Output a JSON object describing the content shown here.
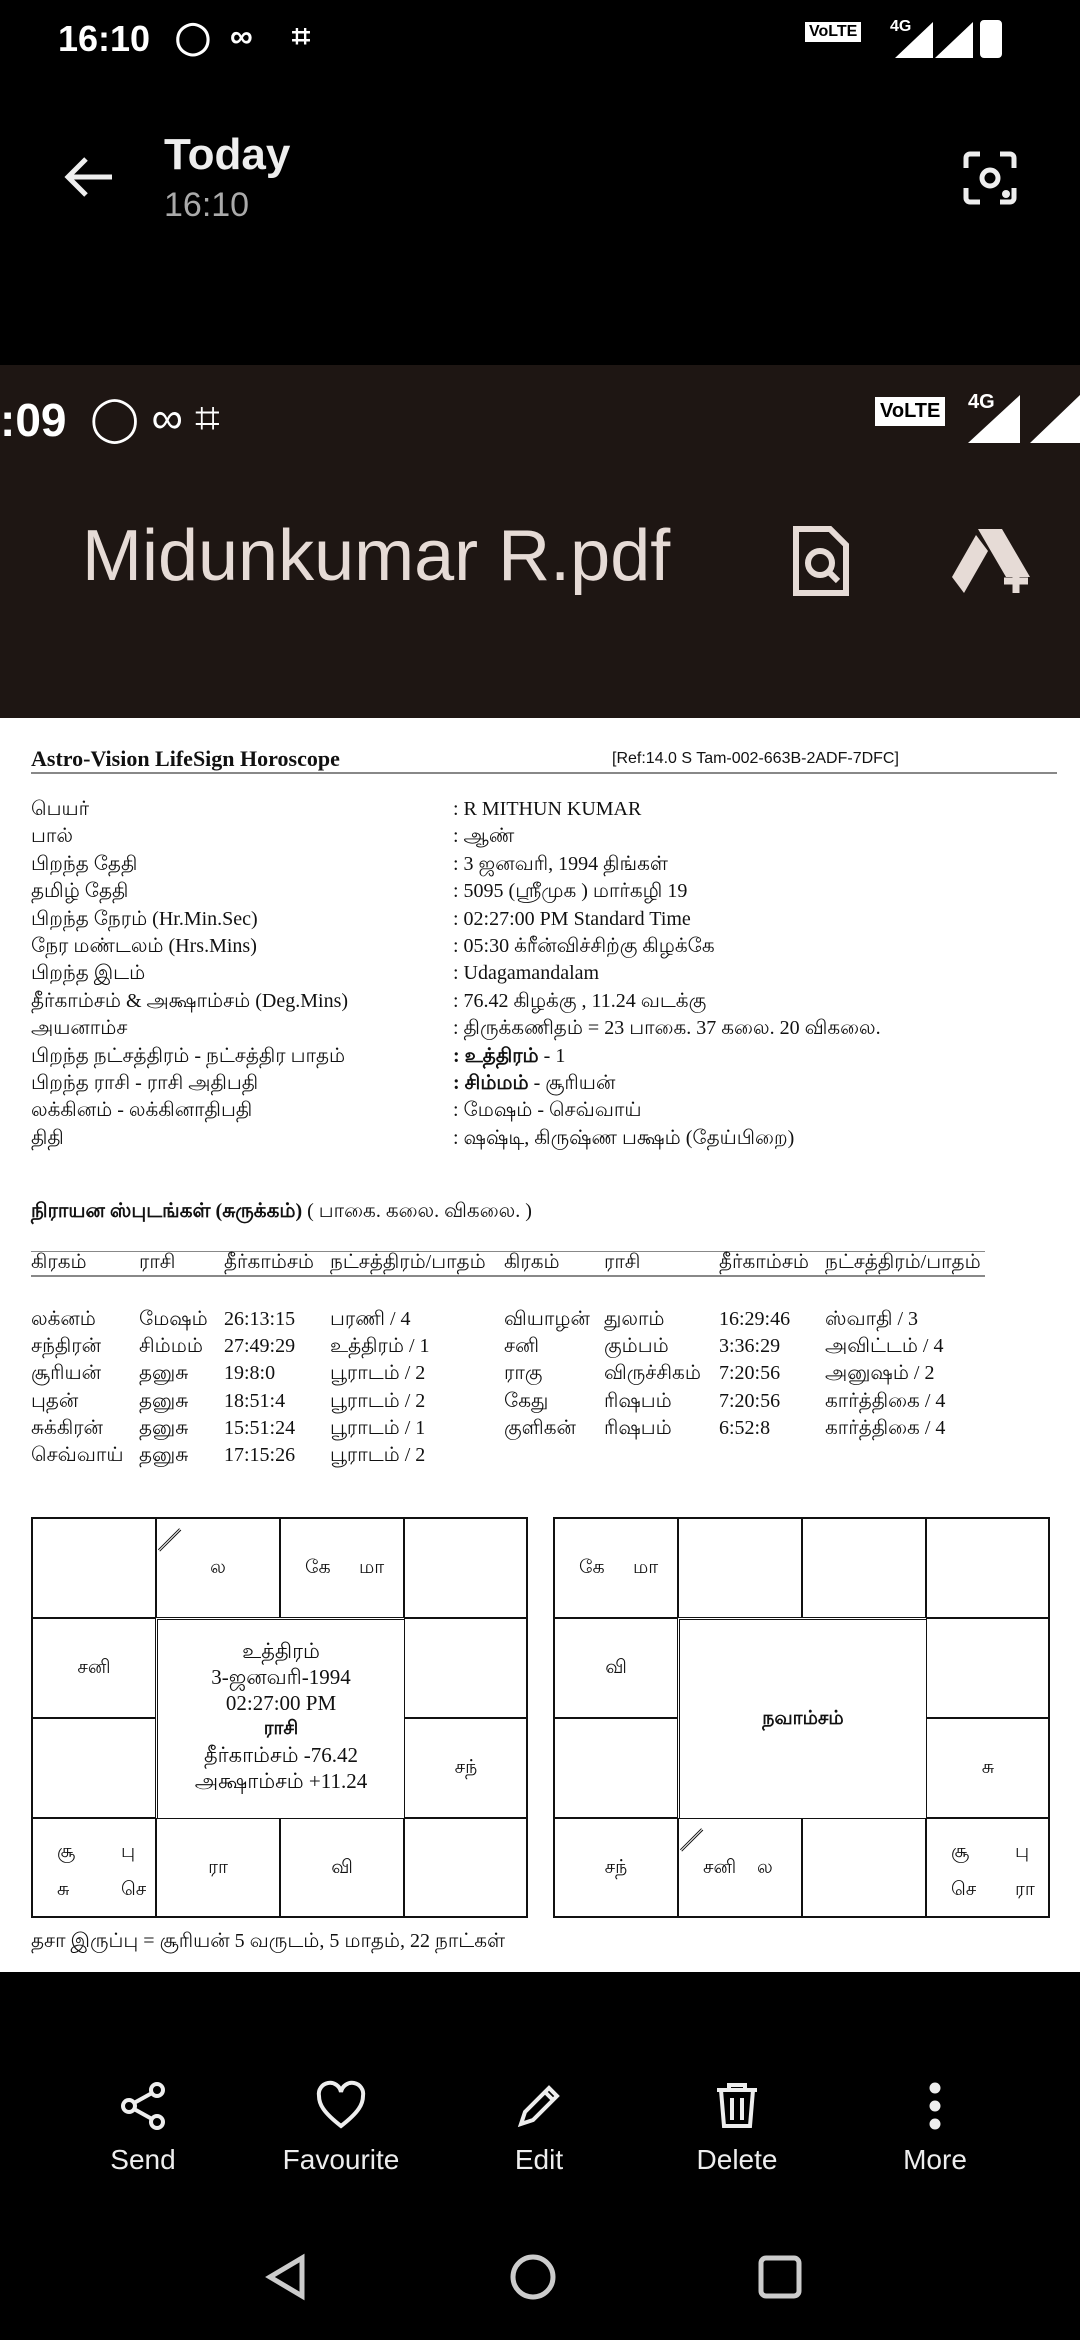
{
  "status_bar": {
    "time": "16:10",
    "network": "4G"
  },
  "header": {
    "title": "Today",
    "subtitle": "16:10"
  },
  "screenshot": {
    "status_time": ":09",
    "network": "4G",
    "file_name": "Midunkumar R.pdf"
  },
  "document": {
    "title": "Astro-Vision LifeSign Horoscope",
    "ref": "[Ref:14.0 S Tam-002-663B-2ADF-7DFC]",
    "details": [
      {
        "label": "பெயர்",
        "value": ": R  MITHUN KUMAR"
      },
      {
        "label": "பால்",
        "value": ": ஆண்"
      },
      {
        "label": "பிறந்த தேதி",
        "value": ": 3 ஜனவரி, 1994  திங்கள்"
      },
      {
        "label": "தமிழ் தேதி",
        "value": ": 5095 (ஸ்ரீமுக ) மார்கழி 19"
      },
      {
        "label": "பிறந்த நேரம் (Hr.Min.Sec)",
        "value": ": 02:27:00 PM Standard Time"
      },
      {
        "label": "நேர மண்டலம் (Hrs.Mins)",
        "value": ": 05:30 க்ரீன்விச்சிற்கு கிழக்கே"
      },
      {
        "label": "பிறந்த இடம்",
        "value": ": Udagamandalam"
      },
      {
        "label": "தீர்காம்சம் & அக்ஷாம்சம் (Deg.Mins)",
        "value": ": 76.42 கிழக்கு , 11.24 வடக்கு"
      },
      {
        "label": "அயனாம்ச",
        "value": ": திருக்கணிதம் = 23 பாகை. 37 கலை. 20 விகலை."
      },
      {
        "label": "பிறந்த நட்சத்திரம் - நட்சத்திர பாதம்",
        "value_bold": ": உத்திரம்",
        "value": " -  1"
      },
      {
        "label": "பிறந்த ராசி - ராசி அதிபதி",
        "value_bold": ": சிம்மம்",
        "value": " - சூரியன்"
      },
      {
        "label": "லக்கினம் - லக்கினாதிபதி",
        "value": ": மேஷம் - செவ்வாய்"
      },
      {
        "label": "திதி",
        "value": ": ஷஷ்டி, கிருஷ்ண பக்ஷம் (தேய்பிறை)"
      }
    ],
    "planets_title": "நிராயன ஸ்புடங்கள் (சுருக்கம்)",
    "planets_subtitle": "( பாகை. கலை. விகலை. )",
    "planet_headers": [
      "கிரகம்",
      "ராசி",
      "தீர்காம்சம்",
      "நட்சத்திரம்/பாதம்",
      "கிரகம்",
      "ராசி",
      "தீர்காம்சம்",
      "நட்சத்திரம்/பாதம்"
    ],
    "planet_rows": [
      [
        "லக்னம்",
        "மேஷம்",
        "26:13:15",
        "பரணி / 4",
        "வியாழன்",
        "துலாம்",
        "16:29:46",
        "ஸ்வாதி / 3"
      ],
      [
        "சந்திரன்",
        "சிம்மம்",
        "27:49:29",
        "உத்திரம் / 1",
        "சனி",
        "கும்பம்",
        "3:36:29",
        "அவிட்டம் / 4"
      ],
      [
        "சூரியன்",
        "தனுசு",
        "19:8:0",
        "பூராடம் / 2",
        "ராகு",
        "விருச்சிகம்",
        "7:20:56",
        "அனுஷம் / 2"
      ],
      [
        "புதன்",
        "தனுசு",
        "18:51:4",
        "பூராடம் / 2",
        "கேது",
        "ரிஷபம்",
        "7:20:56",
        "கார்த்திகை / 4"
      ],
      [
        "சுக்கிரன்",
        "தனுசு",
        "15:51:24",
        "பூராடம் / 1",
        "குளிகன்",
        "ரிஷபம்",
        "6:52:8",
        "கார்த்திகை / 4"
      ],
      [
        "செவ்வாய்",
        "தனுசு",
        "17:15:26",
        "பூராடம் / 2",
        "",
        "",
        "",
        ""
      ]
    ],
    "rasi_chart": {
      "center": [
        "உத்திரம்",
        "3-ஜனவரி-1994",
        "02:27:00 PM",
        "ராசி",
        "தீர்காம்சம்   -76.42",
        "அக்ஷாம்சம்   +11.24"
      ],
      "cells": {
        "0-1": [
          "ல"
        ],
        "0-2": [
          "கே",
          "மா"
        ],
        "1-0": [
          "சனி"
        ],
        "2-3": [
          "சந்"
        ],
        "3-0": [
          "சூ",
          "பு",
          "சு",
          "செ"
        ],
        "3-1": [
          "ரா"
        ],
        "3-2": [
          "வி"
        ]
      }
    },
    "navamsa_chart": {
      "center": [
        "நவாம்சம்"
      ],
      "cells": {
        "0-0": [
          "கே",
          "மா"
        ],
        "1-0": [
          "வி"
        ],
        "2-3": [
          "சு"
        ],
        "3-0": [
          "சந்"
        ],
        "3-1": [
          "சனி",
          "ல"
        ],
        "3-3": [
          "சூ",
          "பு",
          "செ",
          "ரா"
        ]
      }
    },
    "dasa": "தசா இருப்பு = சூரியன் 5 வருடம், 5 மாதம், 22 நாட்கள்"
  },
  "actions": [
    {
      "label": "Send",
      "icon": "share-icon"
    },
    {
      "label": "Favourite",
      "icon": "heart-icon"
    },
    {
      "label": "Edit",
      "icon": "pencil-icon"
    },
    {
      "label": "Delete",
      "icon": "trash-icon"
    },
    {
      "label": "More",
      "icon": "more-icon"
    }
  ]
}
